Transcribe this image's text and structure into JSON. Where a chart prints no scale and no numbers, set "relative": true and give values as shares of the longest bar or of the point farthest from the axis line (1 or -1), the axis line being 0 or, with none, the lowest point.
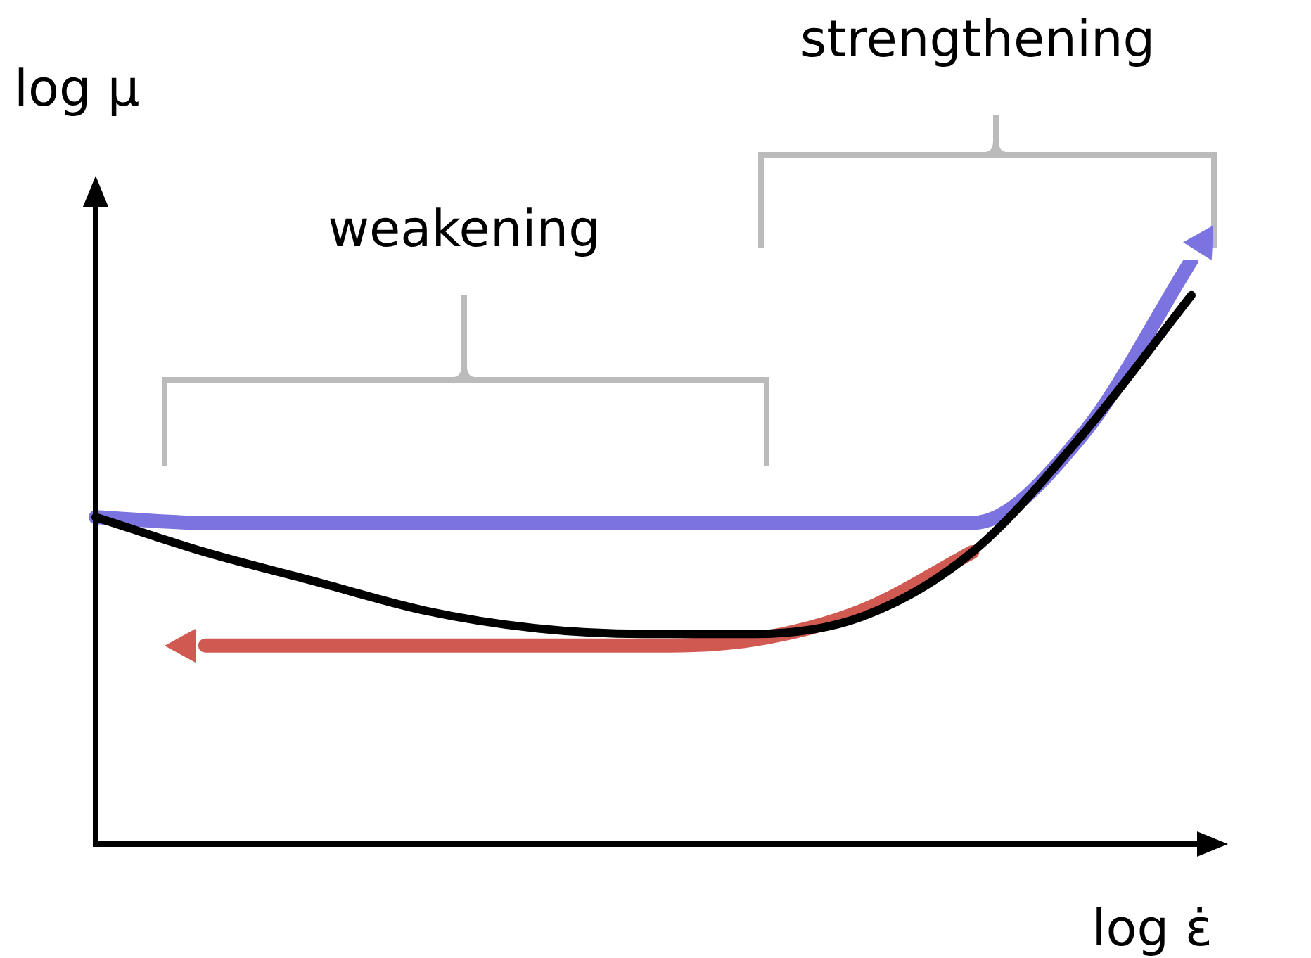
{
  "chart_data": {
    "type": "line",
    "relative": true,
    "xlabel": "log ε̇",
    "ylabel": "log μ",
    "categories": [
      null,
      null,
      null,
      null,
      null,
      null,
      null,
      null,
      null,
      null,
      null
    ],
    "series": [
      {
        "color": "#7b74e0",
        "values": [
          0.56,
          0.55,
          0.55,
          0.55,
          0.55,
          0.55,
          0.55,
          0.55,
          0.55,
          0.7,
          1.0
        ]
      },
      {
        "color": "#d05a52",
        "values": [
          null,
          0.34,
          0.34,
          0.34,
          0.34,
          0.34,
          0.35,
          0.4,
          0.5,
          null,
          null
        ]
      },
      {
        "color": "#000000",
        "values": [
          0.56,
          0.5,
          0.45,
          0.4,
          0.37,
          0.36,
          0.36,
          0.39,
          0.5,
          0.7,
          0.94
        ]
      }
    ],
    "annotations": [
      "weakening",
      "strengthening"
    ],
    "marker": "none",
    "line_style": "solid"
  }
}
